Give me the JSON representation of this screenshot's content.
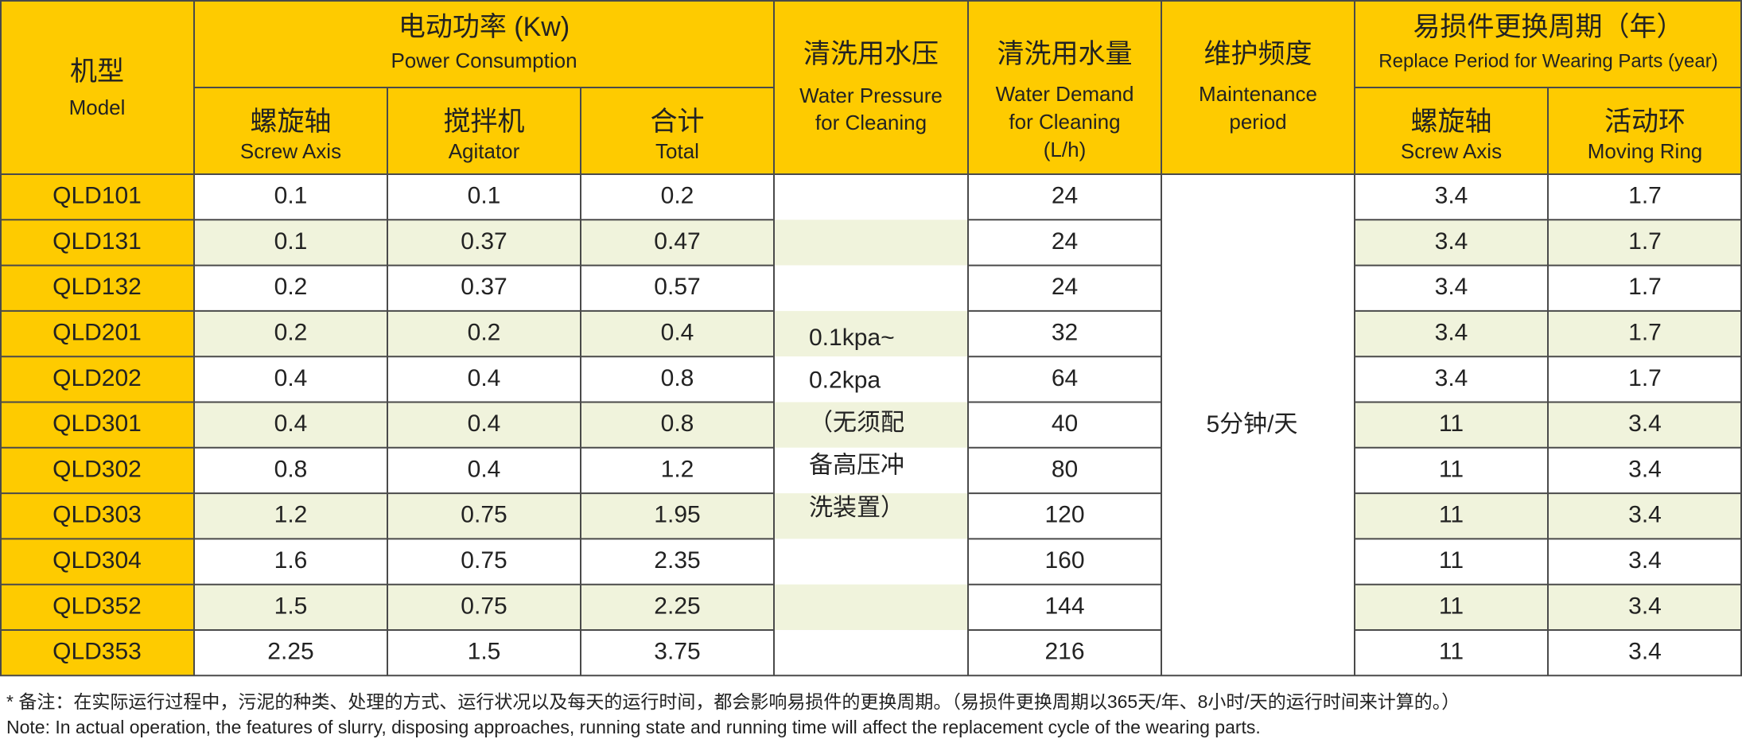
{
  "header": {
    "model": {
      "zh": "机型",
      "en": "Model"
    },
    "power": {
      "zh": "电动功率 (Kw)",
      "en": "Power Consumption",
      "screw": {
        "zh": "螺旋轴",
        "en": "Screw Axis"
      },
      "agitator": {
        "zh": "搅拌机",
        "en": "Agitator"
      },
      "total": {
        "zh": "合计",
        "en": "Total"
      }
    },
    "water_pressure": {
      "zh": "清洗用水压",
      "en": [
        "Water Pressure",
        "for Cleaning"
      ]
    },
    "water_demand": {
      "zh": "清洗用水量",
      "en": [
        "Water Demand",
        "for Cleaning",
        "(L/h)"
      ]
    },
    "maintenance": {
      "zh": "维护频度",
      "en": [
        "Maintenance",
        "period"
      ]
    },
    "replace": {
      "zh": "易损件更换周期（年）",
      "en": "Replace Period for Wearing Parts (year)",
      "screw": {
        "zh": "螺旋轴",
        "en": "Screw Axis"
      },
      "ring": {
        "zh": "活动环",
        "en": "Moving Ring"
      }
    }
  },
  "table": {
    "rows": [
      [
        "QLD101",
        "0.1",
        "0.1",
        "0.2",
        "24",
        "3.4",
        "1.7"
      ],
      [
        "QLD131",
        "0.1",
        "0.37",
        "0.47",
        "24",
        "3.4",
        "1.7"
      ],
      [
        "QLD132",
        "0.2",
        "0.37",
        "0.57",
        "24",
        "3.4",
        "1.7"
      ],
      [
        "QLD201",
        "0.2",
        "0.2",
        "0.4",
        "32",
        "3.4",
        "1.7"
      ],
      [
        "QLD202",
        "0.4",
        "0.4",
        "0.8",
        "64",
        "3.4",
        "1.7"
      ],
      [
        "QLD301",
        "0.4",
        "0.4",
        "0.8",
        "40",
        "11",
        "3.4"
      ],
      [
        "QLD302",
        "0.8",
        "0.4",
        "1.2",
        "80",
        "11",
        "3.4"
      ],
      [
        "QLD303",
        "1.2",
        "0.75",
        "1.95",
        "120",
        "11",
        "3.4"
      ],
      [
        "QLD304",
        "1.6",
        "0.75",
        "2.35",
        "160",
        "11",
        "3.4"
      ],
      [
        "QLD352",
        "1.5",
        "0.75",
        "2.25",
        "144",
        "11",
        "3.4"
      ],
      [
        "QLD353",
        "2.25",
        "1.5",
        "3.75",
        "216",
        "11",
        "3.4"
      ]
    ],
    "water_pressure": [
      "0.1kpa~",
      "0.2kpa",
      "（无须配",
      "备高压冲",
      "洗装置）"
    ],
    "maintenance": "5分钟/天"
  },
  "notes": [
    "* 备注：在实际运行过程中，污泥的种类、处理的方式、运行状况以及每天的运行时间，都会影响易损件的更换周期。（易损件更换周期以365天/年、8小时/天的运行时间来计算的。）",
    "Note: In actual operation, the features of slurry, disposing approaches, running state and running time will affect the replacement cycle of the wearing parts."
  ]
}
